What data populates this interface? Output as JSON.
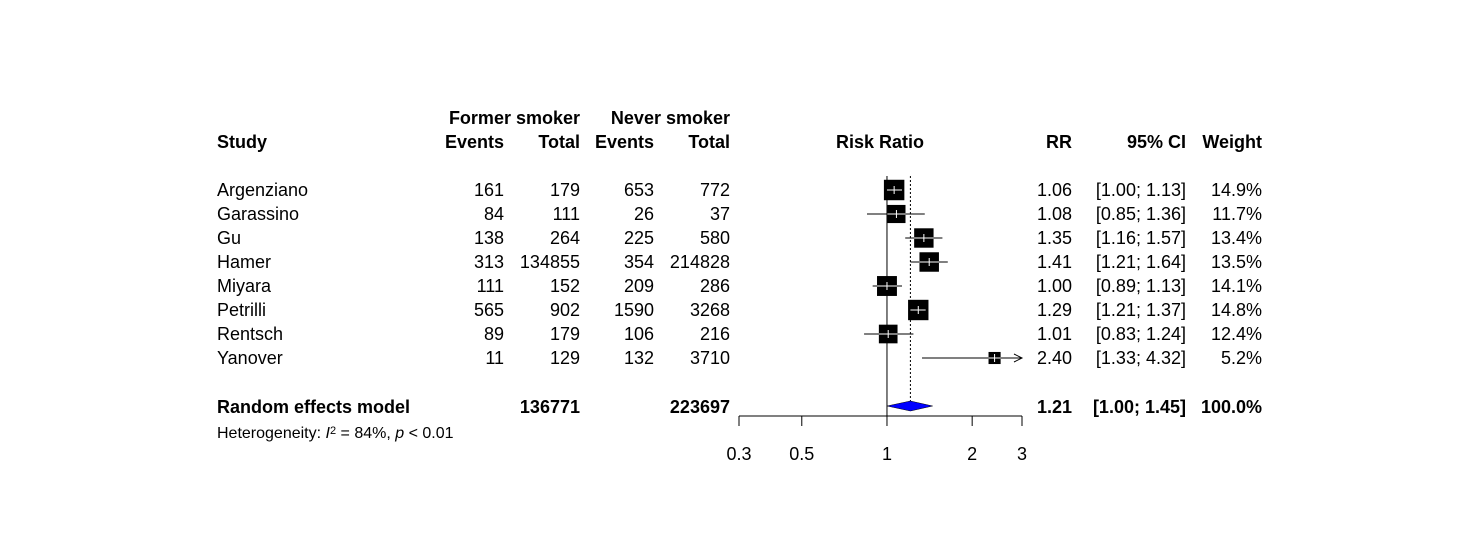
{
  "header": {
    "group1": "Former smoker",
    "group2": "Never smoker",
    "study": "Study",
    "events1": "Events",
    "total1": "Total",
    "events2": "Events",
    "total2": "Total",
    "plot_title": "Risk Ratio",
    "rr": "RR",
    "ci": "95% CI",
    "weight": "Weight"
  },
  "studies": [
    {
      "name": "Argenziano",
      "e1": "161",
      "t1": "179",
      "e2": "653",
      "t2": "772",
      "rr_text": "1.06",
      "ci_text": "[1.00; 1.13]",
      "weight_text": "14.9%"
    },
    {
      "name": "Garassino",
      "e1": "84",
      "t1": "111",
      "e2": "26",
      "t2": "37",
      "rr_text": "1.08",
      "ci_text": "[0.85; 1.36]",
      "weight_text": "11.7%"
    },
    {
      "name": "Gu",
      "e1": "138",
      "t1": "264",
      "e2": "225",
      "t2": "580",
      "rr_text": "1.35",
      "ci_text": "[1.16; 1.57]",
      "weight_text": "13.4%"
    },
    {
      "name": "Hamer",
      "e1": "313",
      "t1": "134855",
      "e2": "354",
      "t2": "214828",
      "rr_text": "1.41",
      "ci_text": "[1.21; 1.64]",
      "weight_text": "13.5%"
    },
    {
      "name": "Miyara",
      "e1": "111",
      "t1": "152",
      "e2": "209",
      "t2": "286",
      "rr_text": "1.00",
      "ci_text": "[0.89; 1.13]",
      "weight_text": "14.1%"
    },
    {
      "name": "Petrilli",
      "e1": "565",
      "t1": "902",
      "e2": "1590",
      "t2": "3268",
      "rr_text": "1.29",
      "ci_text": "[1.21; 1.37]",
      "weight_text": "14.8%"
    },
    {
      "name": "Rentsch",
      "e1": "89",
      "t1": "179",
      "e2": "106",
      "t2": "216",
      "rr_text": "1.01",
      "ci_text": "[0.83; 1.24]",
      "weight_text": "12.4%"
    },
    {
      "name": "Yanover",
      "e1": "11",
      "t1": "129",
      "e2": "132",
      "t2": "3710",
      "rr_text": "2.40",
      "ci_text": "[1.33; 4.32]",
      "weight_text": "5.2%"
    }
  ],
  "summary": {
    "label": "Random effects model",
    "t1": "136771",
    "t2": "223697",
    "rr_text": "1.21",
    "ci_text": "[1.00; 1.45]",
    "weight_text": "100.0%"
  },
  "heterogeneity": {
    "prefix": "Heterogeneity: ",
    "i_symbol": "I",
    "sup": "2",
    "i2_text": " = 84%, ",
    "p_symbol": "p",
    "p_text": " < 0.01"
  },
  "chart_data": {
    "type": "forest",
    "title": "Risk Ratio",
    "scale": "log",
    "xlim": [
      0.3,
      3
    ],
    "ticks": [
      "0.3",
      "0.5",
      "1",
      "2",
      "3"
    ],
    "tick_values": [
      0.3,
      0.5,
      1,
      2,
      3
    ],
    "null_value": 1,
    "studies": [
      {
        "name": "Argenziano",
        "rr": 1.06,
        "lower": 1.0,
        "upper": 1.13,
        "weight": 14.9
      },
      {
        "name": "Garassino",
        "rr": 1.08,
        "lower": 0.85,
        "upper": 1.36,
        "weight": 11.7
      },
      {
        "name": "Gu",
        "rr": 1.35,
        "lower": 1.16,
        "upper": 1.57,
        "weight": 13.4
      },
      {
        "name": "Hamer",
        "rr": 1.41,
        "lower": 1.21,
        "upper": 1.64,
        "weight": 13.5
      },
      {
        "name": "Miyara",
        "rr": 1.0,
        "lower": 0.89,
        "upper": 1.13,
        "weight": 14.1
      },
      {
        "name": "Petrilli",
        "rr": 1.29,
        "lower": 1.21,
        "upper": 1.37,
        "weight": 14.8
      },
      {
        "name": "Rentsch",
        "rr": 1.01,
        "lower": 0.83,
        "upper": 1.24,
        "weight": 12.4
      },
      {
        "name": "Yanover",
        "rr": 2.4,
        "lower": 1.33,
        "upper": 4.32,
        "weight": 5.2
      }
    ],
    "summary": {
      "name": "Random effects model",
      "rr": 1.21,
      "lower": 1.0,
      "upper": 1.45,
      "weight": 100.0
    },
    "colors": {
      "summary_diamond": "#0000ff",
      "square": "#000000",
      "inner_ci": "#ffffff"
    }
  }
}
